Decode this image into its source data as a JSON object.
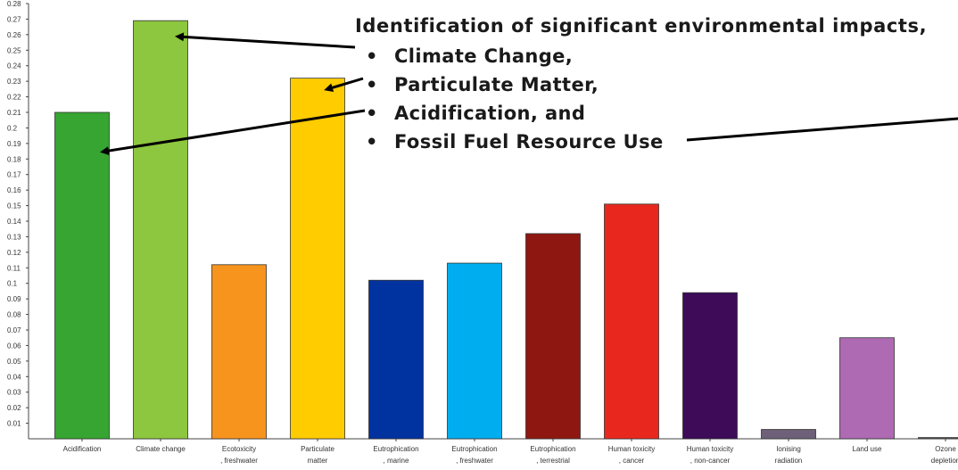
{
  "chart_data": {
    "type": "bar",
    "title": "",
    "xlabel": "",
    "ylabel": "",
    "ylim": [
      0,
      0.28
    ],
    "yticks": [
      "0.01",
      "0.02",
      "0.03",
      "0.04",
      "0.05",
      "0.06",
      "0.07",
      "0.08",
      "0.09",
      "0.1",
      "0.11",
      "0.12",
      "0.13",
      "0.14",
      "0.15",
      "0.16",
      "0.17",
      "0.18",
      "0.19",
      "0.2",
      "0.21",
      "0.22",
      "0.23",
      "0.24",
      "0.25",
      "0.26",
      "0.27",
      "0.28"
    ],
    "grid": false,
    "legend": "none",
    "categories": [
      [
        "Acidification"
      ],
      [
        "Climate change"
      ],
      [
        "Ecotoxicity",
        ", freshwater"
      ],
      [
        "Particulate",
        "matter"
      ],
      [
        "Eutrophication",
        ", marine"
      ],
      [
        "Eutrophication",
        ", freshwater"
      ],
      [
        "Eutrophication",
        ", terrestrial"
      ],
      [
        "Human toxicity",
        ", cancer"
      ],
      [
        "Human toxicity",
        ", non-cancer"
      ],
      [
        "Ionising",
        "radiation"
      ],
      [
        "Land use"
      ],
      [
        "Ozone",
        "depletion"
      ]
    ],
    "values": [
      0.21,
      0.269,
      0.112,
      0.232,
      0.102,
      0.113,
      0.132,
      0.151,
      0.094,
      0.006,
      0.065,
      0.0008
    ],
    "colors": [
      "#36a532",
      "#8dc63f",
      "#f7941d",
      "#ffcc00",
      "#0033a0",
      "#00aeef",
      "#8f1711",
      "#e8281e",
      "#3d0b58",
      "#6d6078",
      "#ae6ab2",
      "#555555"
    ]
  },
  "annotation": {
    "title": "Identification of significant environmental impacts,",
    "bullet": "•",
    "items": [
      "Climate Change,",
      "Particulate Matter,",
      "Acidification, and",
      "Fossil Fuel Resource Use"
    ]
  }
}
